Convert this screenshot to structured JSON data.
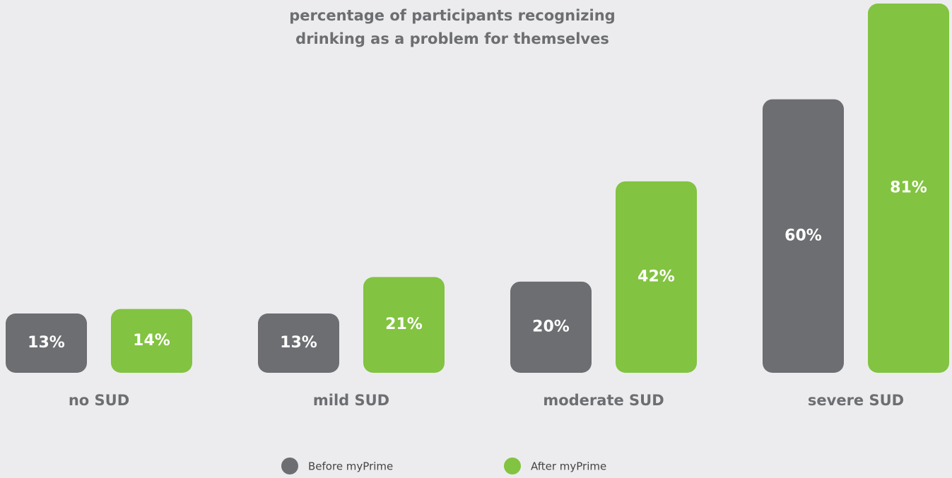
{
  "chart_data": {
    "type": "bar",
    "title": "percentage of participants recognizing drinking as a problem for themselves",
    "categories": [
      "no SUD",
      "mild SUD",
      "moderate  SUD",
      "severe SUD"
    ],
    "series": [
      {
        "name": "Before myPrime",
        "color": "#6d6e71",
        "values": [
          13,
          13,
          20,
          60
        ],
        "value_labels": [
          "13%",
          "13%",
          "20%",
          "60%"
        ]
      },
      {
        "name": "After myPrime",
        "color": "#82c341",
        "values": [
          14,
          21,
          42,
          81
        ],
        "value_labels": [
          "14%",
          "21%",
          "42%",
          "81%"
        ]
      }
    ],
    "legend": "bottom"
  }
}
